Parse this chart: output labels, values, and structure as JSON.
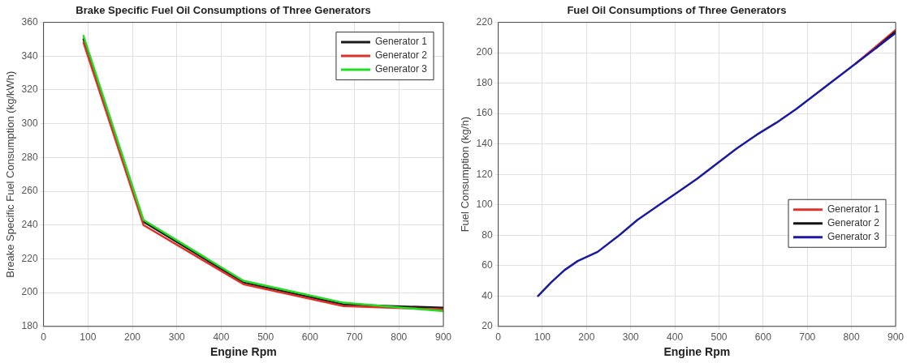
{
  "chart_data": [
    {
      "type": "line",
      "title": "Brake Specific Fuel Oil Consumptions of Three Generators",
      "xlabel": "Engine Rpm",
      "ylabel": "Breake Specific Fuel Consumption (kg/kWh)",
      "x": [
        90,
        225,
        450,
        675,
        900
      ],
      "series": [
        {
          "name": "Generator 1",
          "color": "#1a1a1a",
          "values": [
            350,
            242,
            206,
            193,
            191
          ]
        },
        {
          "name": "Generator 2",
          "color": "#e0302a",
          "values": [
            348,
            240,
            205,
            192,
            190
          ]
        },
        {
          "name": "Generator 3",
          "color": "#22dd22",
          "values": [
            352,
            243,
            207,
            194,
            189
          ]
        }
      ],
      "xlim": [
        0,
        900
      ],
      "xticks": [
        0,
        100,
        200,
        300,
        400,
        500,
        600,
        700,
        800,
        900
      ],
      "ylim": [
        180,
        360
      ],
      "yticks": [
        180,
        200,
        220,
        240,
        260,
        280,
        300,
        320,
        340,
        360
      ],
      "grid": true,
      "legend": "top right",
      "marker": "none",
      "line_style": "solid"
    },
    {
      "type": "line",
      "title": "Fuel Oil Consumptions of Three Generators",
      "xlabel": "Engine Rpm",
      "ylabel": "Fuel Consumption (kg/h)",
      "x": [
        90,
        120,
        150,
        180,
        210,
        225,
        270,
        315,
        360,
        405,
        450,
        495,
        540,
        585,
        630,
        675,
        720,
        765,
        810,
        855,
        900
      ],
      "series": [
        {
          "name": "Generator 1",
          "color": "#e0302a",
          "values": [
            null,
            null,
            null,
            null,
            null,
            null,
            null,
            null,
            null,
            null,
            null,
            null,
            null,
            null,
            null,
            null,
            null,
            null,
            193,
            204,
            215
          ]
        },
        {
          "name": "Generator 2",
          "color": "#111111",
          "values": [
            null,
            null,
            null,
            null,
            null,
            null,
            null,
            null,
            null,
            null,
            null,
            null,
            null,
            null,
            null,
            null,
            null,
            null,
            null,
            203,
            214
          ]
        },
        {
          "name": "Generator 3",
          "color": "#1a1aa0",
          "values": [
            40,
            49,
            57,
            63,
            67,
            69,
            79,
            90,
            99,
            108,
            117,
            127,
            137,
            146,
            154,
            163,
            173,
            183,
            193,
            203,
            213
          ]
        }
      ],
      "xlim": [
        0,
        900
      ],
      "xticks": [
        0,
        100,
        200,
        300,
        400,
        500,
        600,
        700,
        800,
        900
      ],
      "ylim": [
        20,
        220
      ],
      "yticks": [
        20,
        40,
        60,
        80,
        100,
        120,
        140,
        160,
        180,
        200,
        220
      ],
      "grid": true,
      "legend": "bottom right",
      "marker": "none",
      "line_style": "solid"
    }
  ]
}
